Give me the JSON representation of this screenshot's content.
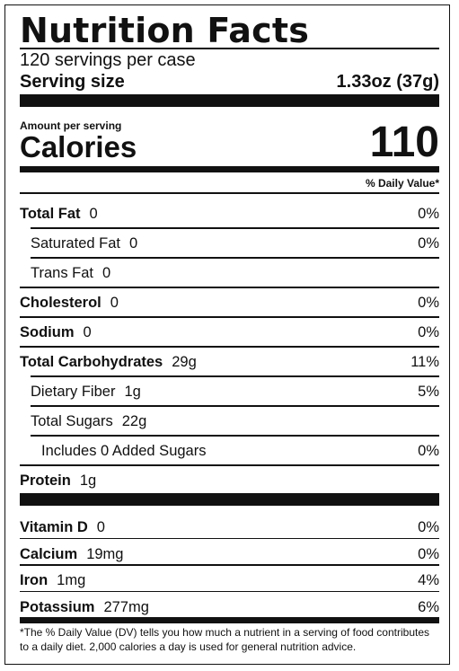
{
  "title": "Nutrition Facts",
  "servings_per_container": "120 servings per case",
  "serving_size_label": "Serving size",
  "serving_size_value": "1.33oz (37g)",
  "amount_per_serving": "Amount per serving",
  "calories_label": "Calories",
  "calories_value": "110",
  "daily_value_header": "% Daily Value*",
  "nutrients": [
    {
      "name": "Total Fat",
      "amount": "0",
      "dv": "0%",
      "bold": true
    },
    {
      "name": "Saturated Fat",
      "amount": "0",
      "dv": "0%",
      "bold": false
    },
    {
      "name": "Trans Fat",
      "amount": "0",
      "dv": "",
      "bold": false
    },
    {
      "name": "Cholesterol",
      "amount": "0",
      "dv": "0%",
      "bold": true
    },
    {
      "name": "Sodium",
      "amount": "0",
      "dv": "0%",
      "bold": true
    },
    {
      "name": "Total Carbohydrates",
      "amount": "29g",
      "dv": "11%",
      "bold": true
    },
    {
      "name": "Dietary Fiber",
      "amount": "1g",
      "dv": "5%",
      "bold": false
    },
    {
      "name": "Total Sugars",
      "amount": "22g",
      "dv": "",
      "bold": false
    },
    {
      "name": "Includes 0 Added Sugars",
      "amount": "",
      "dv": "0%",
      "bold": false
    },
    {
      "name": "Protein",
      "amount": "1g",
      "dv": "",
      "bold": true
    }
  ],
  "vitamins": [
    {
      "name": "Vitamin D",
      "amount": "0",
      "dv": "0%"
    },
    {
      "name": "Calcium",
      "amount": "19mg",
      "dv": "0%"
    },
    {
      "name": "Iron",
      "amount": "1mg",
      "dv": "4%"
    },
    {
      "name": "Potassium",
      "amount": "277mg",
      "dv": "6%"
    }
  ],
  "footnote": "*The % Daily Value (DV) tells you how much a nutrient in a serving of food contributes to a daily diet. 2,000 calories a day is used for general nutrition advice."
}
